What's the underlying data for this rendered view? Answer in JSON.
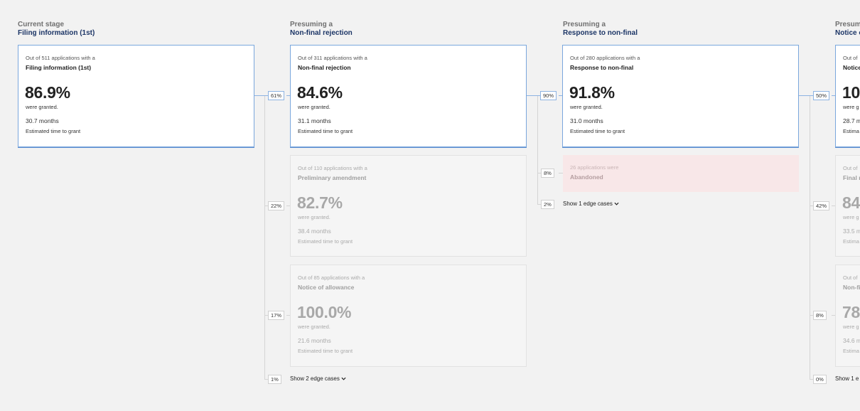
{
  "columns": [
    {
      "pre": "Current stage",
      "title": "Filing information (1st)"
    },
    {
      "pre": "Presuming a",
      "title": "Non-final rejection"
    },
    {
      "pre": "Presuming a",
      "title": "Response to non-final"
    },
    {
      "pre": "Presuming a",
      "title": "Notice of allowance"
    }
  ],
  "cards": {
    "filing": {
      "intro": "Out of 511 applications with a",
      "stage": "Filing information (1st)",
      "pct": "86.9%",
      "granted": "were granted.",
      "months": "30.7 months",
      "est": "Estimated time to grant"
    },
    "nonfinal": {
      "intro": "Out of 311 applications with a",
      "stage": "Non-final rejection",
      "pct": "84.6%",
      "granted": "were granted.",
      "months": "31.1 months",
      "est": "Estimated time to grant"
    },
    "prelim": {
      "intro": "Out of 110 applications with a",
      "stage": "Preliminary amendment",
      "pct": "82.7%",
      "granted": "were granted.",
      "months": "38.4 months",
      "est": "Estimated time to grant"
    },
    "allow2": {
      "intro": "Out of 85 applications with a",
      "stage": "Notice of allowance",
      "pct": "100.0%",
      "granted": "were granted.",
      "months": "21.6 months",
      "est": "Estimated time to grant"
    },
    "response": {
      "intro": "Out of 280 applications with a",
      "stage": "Response to non-final",
      "pct": "91.8%",
      "granted": "were granted.",
      "months": "31.0 months",
      "est": "Estimated time to grant"
    },
    "abandoned": {
      "intro": "26 applications were",
      "stage": "Abandoned"
    },
    "col4_top": {
      "intro": "Out of",
      "stage": "Notice",
      "pct": "10",
      "granted": "were g",
      "months": "28.7 m",
      "est": "Estima"
    },
    "col4_mid": {
      "intro": "Out of",
      "stage": "Final r",
      "pct": "84",
      "granted": "were g",
      "months": "33.5 m",
      "est": "Estima"
    },
    "col4_bot": {
      "intro": "Out of",
      "stage": "Non-fi",
      "pct": "78",
      "granted": "were g",
      "months": "34.6 m",
      "est": "Estima"
    }
  },
  "badges": {
    "c2_top": "61%",
    "c2_mid": "22%",
    "c2_bot": "17%",
    "c2_edge": "1%",
    "c3_top": "90%",
    "c3_mid": "8%",
    "c3_edge": "2%",
    "c4_top": "50%",
    "c4_mid": "42%",
    "c4_bot": "8%",
    "c4_edge": "0%"
  },
  "edge_links": {
    "c2": "Show 2 edge cases",
    "c3": "Show 1 edge cases",
    "c4": "Show 1 e"
  },
  "colors": {
    "accent": "#8db3e2",
    "title": "#1c3566",
    "abandoned_bg": "#f8e7e8"
  }
}
